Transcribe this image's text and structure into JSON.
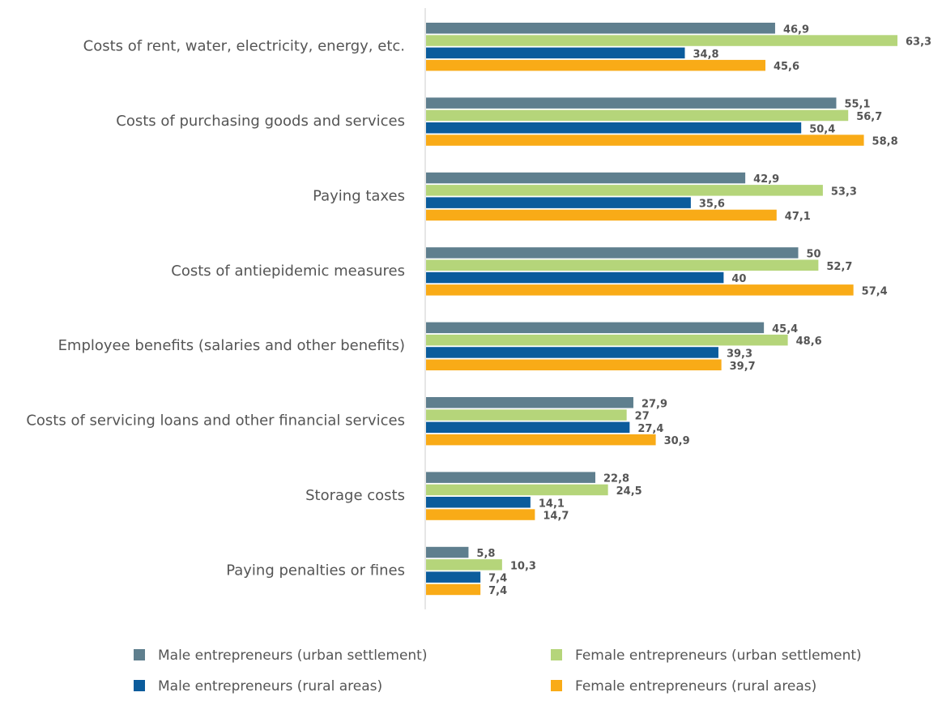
{
  "chart_data": {
    "type": "bar",
    "orientation": "horizontal",
    "categories": [
      "Costs of rent, water, electricity, energy, etc.",
      "Costs of purchasing goods and services",
      "Paying taxes",
      "Costs of antiepidemic measures",
      "Employee benefits (salaries and other benefits)",
      "Costs of servicing loans and other financial services",
      "Storage costs",
      "Paying penalties or fines"
    ],
    "series": [
      {
        "name": "Male entrepreneurs (urban settlement)",
        "color": "#5f7f8e",
        "values": [
          46.9,
          55.1,
          42.9,
          50,
          45.4,
          27.9,
          22.8,
          5.8
        ],
        "value_labels": [
          "46,9",
          "55,1",
          "42,9",
          "50",
          "45,4",
          "27,9",
          "22,8",
          "5,8"
        ]
      },
      {
        "name": "Female entrepreneurs (urban settlement)",
        "color": "#b5d57a",
        "values": [
          63.3,
          56.7,
          53.3,
          52.7,
          48.6,
          27,
          24.5,
          10.3
        ],
        "value_labels": [
          "63,3",
          "56,7",
          "53,3",
          "52,7",
          "48,6",
          "27",
          "24,5",
          "10,3"
        ]
      },
      {
        "name": "Male entrepreneurs (rural areas)",
        "color": "#0b5c9c",
        "values": [
          34.8,
          50.4,
          35.6,
          40,
          39.3,
          27.4,
          14.1,
          7.4
        ],
        "value_labels": [
          "34,8",
          "50,4",
          "35,6",
          "40",
          "39,3",
          "27,4",
          "14,1",
          "7,4"
        ]
      },
      {
        "name": "Female entrepreneurs (rural areas)",
        "color": "#f9ab17",
        "values": [
          45.6,
          58.8,
          47.1,
          57.4,
          39.7,
          30.9,
          14.7,
          7.4
        ],
        "value_labels": [
          "45,6",
          "58,8",
          "47,1",
          "57,4",
          "39,7",
          "30,9",
          "14,7",
          "7,4"
        ]
      }
    ]
  }
}
